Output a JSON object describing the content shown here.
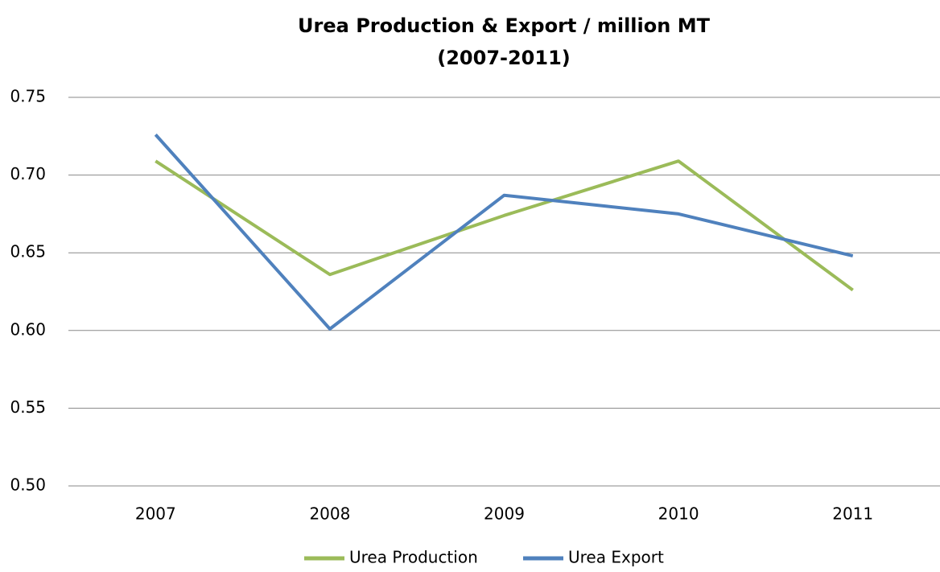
{
  "chart_data": {
    "type": "line",
    "title": [
      "Urea Production & Export / million MT",
      "(2007-2011)"
    ],
    "categories": [
      "2007",
      "2008",
      "2009",
      "2010",
      "2011"
    ],
    "series": [
      {
        "name": "Urea Production",
        "color": "#9bbb59",
        "values": [
          0.709,
          0.636,
          0.674,
          0.709,
          0.626
        ]
      },
      {
        "name": "Urea Export",
        "color": "#4f81bd",
        "values": [
          0.726,
          0.601,
          0.687,
          0.675,
          0.648
        ]
      }
    ],
    "ylim": [
      0.5,
      0.75
    ],
    "yticks": [
      {
        "value": 0.5,
        "label": "0.50"
      },
      0.55,
      {
        "value": 0.6,
        "label": "0.60"
      },
      0.65,
      {
        "value": 0.7,
        "label": "0.70"
      },
      0.75
    ],
    "grid": true,
    "legend": "bottom"
  }
}
